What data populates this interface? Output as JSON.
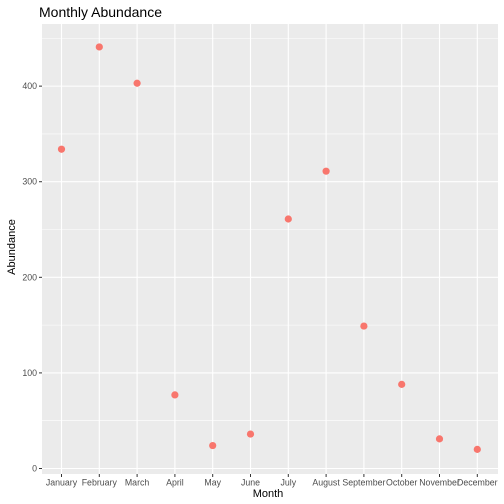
{
  "chart_data": {
    "type": "scatter",
    "title": "Monthly Abundance",
    "xlabel": "Month",
    "ylabel": "Abundance",
    "categories": [
      "January",
      "February",
      "March",
      "April",
      "May",
      "June",
      "July",
      "August",
      "September",
      "October",
      "November",
      "December"
    ],
    "series": [
      {
        "values": [
          334,
          441,
          403,
          77,
          24,
          36,
          261,
          311,
          149,
          88,
          31,
          20
        ]
      }
    ],
    "y_ticks": [
      0,
      100,
      200,
      300,
      400
    ],
    "ylim": [
      0,
      465
    ],
    "grid": true,
    "panel_background": "#ebebeb",
    "grid_color": "#ffffff",
    "point_color": "#f8766d"
  }
}
